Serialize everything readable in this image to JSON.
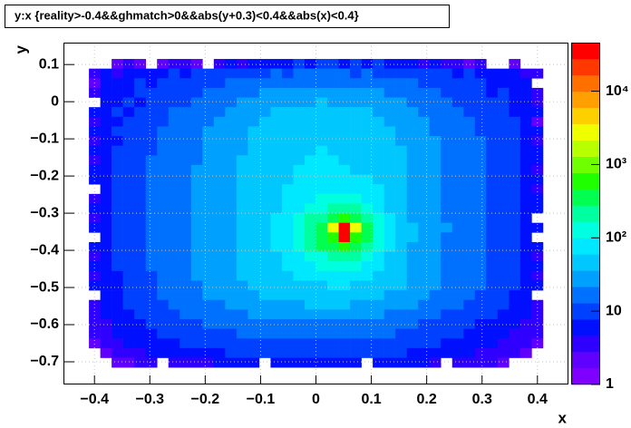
{
  "chart_data": {
    "type": "heatmap",
    "title": "y:x {reality>-0.4&&ghmatch>0&&abs(y+0.3)<0.4&&abs(x)<0.4}",
    "x_label": "x",
    "y_label": "y",
    "xlim": [
      -0.456,
      0.456
    ],
    "ylim": [
      -0.761,
      0.159
    ],
    "x_range": [
      -0.41,
      0.41
    ],
    "y_range": [
      -0.715,
      0.115
    ],
    "zlim": [
      1,
      46000
    ],
    "log_z": true,
    "grid": true,
    "xticks": [
      {
        "value": -0.4,
        "label": "−0.4"
      },
      {
        "value": -0.3,
        "label": "−0.3"
      },
      {
        "value": -0.2,
        "label": "−0.2"
      },
      {
        "value": -0.1,
        "label": "−0.1"
      },
      0,
      0.1,
      0.2,
      0.3,
      0.4
    ],
    "yticks": [
      0.1,
      0,
      {
        "value": -0.1,
        "label": "−0.1"
      },
      {
        "value": -0.2,
        "label": "−0.2"
      },
      {
        "value": -0.3,
        "label": "−0.3"
      },
      {
        "value": -0.4,
        "label": "−0.4"
      },
      {
        "value": -0.5,
        "label": "−0.5"
      },
      {
        "value": -0.6,
        "label": "−0.6"
      },
      {
        "value": -0.7,
        "label": "−0.7"
      }
    ],
    "zticks": [
      1,
      10,
      {
        "value": 100,
        "label": "10²"
      },
      {
        "value": 1000,
        "label": "10³"
      },
      {
        "value": 10000,
        "label": "10⁴"
      }
    ],
    "palette": [
      "#7f00ff",
      "#6000ff",
      "#3000ff",
      "#0010ff",
      "#0040ff",
      "#0070ff",
      "#00a0ff",
      "#00c8ff",
      "#00e8ff",
      "#00ffe0",
      "#00ffa0",
      "#00ff50",
      "#20ff00",
      "#70ff00",
      "#b8ff00",
      "#f0ff00",
      "#ffd000",
      "#ffa000",
      "#ff7000",
      "#ff3800",
      "#ff0000"
    ],
    "z": [
      [
        0,
        0,
        2,
        3,
        2,
        0,
        2,
        4,
        3,
        2,
        0,
        3,
        5,
        4,
        6,
        5,
        7,
        6,
        8,
        7,
        9,
        8,
        7,
        9,
        6,
        8,
        7,
        5,
        6,
        4,
        5,
        3,
        4,
        2,
        3,
        0,
        0,
        2,
        0,
        0
      ],
      [
        3,
        5,
        4,
        6,
        5,
        7,
        6,
        8,
        7,
        9,
        8,
        10,
        9,
        11,
        12,
        10,
        13,
        12,
        14,
        13,
        15,
        14,
        13,
        12,
        14,
        11,
        12,
        10,
        9,
        11,
        8,
        9,
        7,
        8,
        6,
        7,
        5,
        6,
        4,
        3
      ],
      [
        2,
        6,
        5,
        7,
        8,
        6,
        9,
        8,
        10,
        9,
        11,
        12,
        13,
        15,
        14,
        16,
        18,
        17,
        20,
        19,
        21,
        20,
        19,
        18,
        17,
        16,
        15,
        14,
        13,
        12,
        11,
        10,
        9,
        8,
        9,
        7,
        6,
        5,
        6,
        0
      ],
      [
        4,
        5,
        7,
        6,
        8,
        9,
        8,
        10,
        11,
        12,
        13,
        14,
        16,
        18,
        20,
        22,
        24,
        23,
        26,
        27,
        28,
        27,
        26,
        25,
        23,
        22,
        20,
        18,
        16,
        15,
        13,
        12,
        11,
        9,
        8,
        7,
        8,
        6,
        5,
        3
      ],
      [
        0,
        6,
        7,
        8,
        7,
        9,
        10,
        11,
        12,
        14,
        15,
        17,
        19,
        22,
        25,
        28,
        30,
        32,
        34,
        35,
        36,
        35,
        34,
        32,
        30,
        28,
        25,
        22,
        20,
        18,
        16,
        14,
        12,
        11,
        10,
        9,
        8,
        7,
        6,
        4
      ],
      [
        5,
        6,
        8,
        7,
        9,
        10,
        12,
        13,
        14,
        16,
        18,
        20,
        23,
        26,
        29,
        33,
        36,
        39,
        41,
        43,
        44,
        43,
        42,
        40,
        37,
        34,
        30,
        27,
        24,
        21,
        18,
        16,
        14,
        12,
        11,
        9,
        8,
        7,
        6,
        5
      ],
      [
        4,
        7,
        6,
        8,
        10,
        11,
        12,
        14,
        16,
        18,
        20,
        23,
        26,
        30,
        34,
        38,
        42,
        45,
        48,
        50,
        51,
        50,
        48,
        46,
        43,
        39,
        35,
        31,
        27,
        23,
        20,
        17,
        15,
        13,
        12,
        10,
        9,
        8,
        7,
        2
      ],
      [
        5,
        6,
        8,
        9,
        10,
        12,
        13,
        15,
        17,
        19,
        22,
        25,
        28,
        32,
        36,
        41,
        45,
        49,
        52,
        54,
        55,
        54,
        52,
        50,
        47,
        43,
        38,
        33,
        29,
        25,
        21,
        18,
        16,
        14,
        12,
        11,
        9,
        8,
        6,
        5
      ],
      [
        3,
        7,
        7,
        9,
        10,
        12,
        14,
        16,
        18,
        20,
        23,
        26,
        30,
        34,
        38,
        43,
        47,
        51,
        54,
        57,
        58,
        57,
        55,
        52,
        49,
        45,
        40,
        35,
        30,
        26,
        22,
        19,
        17,
        15,
        13,
        11,
        10,
        8,
        7,
        4
      ],
      [
        6,
        6,
        8,
        9,
        11,
        12,
        14,
        16,
        18,
        21,
        24,
        27,
        31,
        35,
        39,
        44,
        48,
        52,
        56,
        58,
        60,
        58,
        56,
        53,
        50,
        46,
        41,
        36,
        31,
        27,
        23,
        20,
        17,
        15,
        13,
        11,
        10,
        8,
        7,
        6
      ],
      [
        4,
        7,
        8,
        10,
        11,
        13,
        15,
        17,
        19,
        21,
        24,
        28,
        31,
        36,
        40,
        45,
        49,
        53,
        57,
        60,
        62,
        60,
        57,
        54,
        51,
        47,
        42,
        37,
        32,
        27,
        23,
        20,
        17,
        15,
        13,
        12,
        10,
        9,
        7,
        5
      ],
      [
        5,
        6,
        8,
        9,
        11,
        13,
        15,
        17,
        19,
        22,
        25,
        28,
        32,
        36,
        41,
        46,
        50,
        55,
        60,
        66,
        72,
        70,
        64,
        58,
        52,
        47,
        42,
        37,
        32,
        27,
        23,
        20,
        18,
        15,
        13,
        12,
        10,
        8,
        7,
        3
      ],
      [
        5,
        7,
        8,
        10,
        11,
        13,
        15,
        17,
        20,
        22,
        25,
        29,
        33,
        37,
        42,
        47,
        52,
        57,
        62,
        67,
        72,
        76,
        78,
        74,
        66,
        56,
        46,
        38,
        33,
        28,
        24,
        20,
        18,
        15,
        13,
        12,
        10,
        9,
        7,
        5
      ],
      [
        0,
        6,
        8,
        9,
        11,
        13,
        15,
        18,
        20,
        23,
        26,
        29,
        33,
        38,
        43,
        48,
        54,
        60,
        66,
        72,
        80,
        90,
        95,
        88,
        75,
        60,
        48,
        40,
        33,
        28,
        24,
        21,
        18,
        16,
        14,
        12,
        10,
        9,
        7,
        4
      ],
      [
        4,
        7,
        8,
        10,
        12,
        13,
        16,
        18,
        20,
        23,
        26,
        30,
        34,
        38,
        44,
        50,
        56,
        63,
        72,
        85,
        100,
        120,
        130,
        115,
        90,
        68,
        52,
        41,
        34,
        29,
        25,
        21,
        18,
        16,
        14,
        12,
        10,
        9,
        7,
        5
      ],
      [
        5,
        7,
        8,
        10,
        11,
        14,
        16,
        18,
        21,
        23,
        27,
        30,
        34,
        39,
        45,
        51,
        58,
        68,
        85,
        110,
        150,
        190,
        210,
        180,
        130,
        85,
        58,
        42,
        35,
        29,
        25,
        21,
        19,
        16,
        14,
        12,
        10,
        9,
        7,
        5
      ],
      [
        3,
        6,
        8,
        10,
        12,
        13,
        16,
        18,
        21,
        24,
        27,
        30,
        35,
        39,
        45,
        53,
        66,
        85,
        120,
        180,
        260,
        400,
        500,
        380,
        200,
        110,
        62,
        44,
        35,
        30,
        25,
        21,
        18,
        16,
        14,
        12,
        10,
        9,
        7,
        0
      ],
      [
        5,
        7,
        8,
        10,
        11,
        14,
        16,
        18,
        21,
        24,
        27,
        31,
        35,
        40,
        46,
        55,
        70,
        95,
        140,
        240,
        400,
        3000,
        45000,
        3000,
        350,
        130,
        70,
        46,
        36,
        30,
        25,
        22,
        19,
        16,
        14,
        12,
        10,
        9,
        7,
        5
      ],
      [
        0,
        7,
        8,
        10,
        12,
        13,
        16,
        18,
        21,
        24,
        27,
        31,
        35,
        40,
        46,
        54,
        68,
        92,
        135,
        220,
        380,
        600,
        40000,
        600,
        330,
        125,
        68,
        45,
        36,
        30,
        25,
        21,
        19,
        16,
        14,
        12,
        10,
        9,
        7,
        0
      ],
      [
        5,
        6,
        8,
        10,
        11,
        13,
        16,
        18,
        20,
        23,
        27,
        30,
        34,
        39,
        45,
        52,
        64,
        85,
        120,
        180,
        280,
        420,
        500,
        400,
        230,
        110,
        62,
        43,
        35,
        29,
        25,
        21,
        18,
        16,
        14,
        12,
        10,
        9,
        7,
        5
      ],
      [
        4,
        6,
        8,
        9,
        11,
        13,
        15,
        18,
        20,
        23,
        26,
        30,
        34,
        38,
        44,
        50,
        58,
        70,
        90,
        120,
        160,
        200,
        220,
        190,
        140,
        90,
        58,
        42,
        34,
        29,
        24,
        21,
        18,
        16,
        14,
        12,
        10,
        9,
        7,
        4
      ],
      [
        5,
        6,
        8,
        9,
        11,
        13,
        15,
        17,
        20,
        22,
        26,
        29,
        33,
        37,
        42,
        48,
        54,
        62,
        72,
        85,
        100,
        115,
        120,
        110,
        92,
        72,
        54,
        40,
        33,
        28,
        24,
        20,
        18,
        15,
        13,
        12,
        10,
        9,
        7,
        5
      ],
      [
        4,
        6,
        7,
        9,
        10,
        12,
        14,
        17,
        19,
        22,
        25,
        28,
        32,
        36,
        41,
        46,
        51,
        57,
        63,
        68,
        74,
        78,
        80,
        76,
        68,
        58,
        48,
        38,
        32,
        27,
        23,
        20,
        17,
        15,
        13,
        11,
        10,
        8,
        7,
        4
      ],
      [
        5,
        6,
        7,
        9,
        10,
        12,
        14,
        16,
        18,
        21,
        24,
        27,
        30,
        34,
        38,
        42,
        46,
        50,
        54,
        57,
        59,
        60,
        60,
        58,
        54,
        49,
        43,
        36,
        30,
        26,
        22,
        19,
        17,
        14,
        13,
        11,
        9,
        8,
        6,
        5
      ],
      [
        0,
        5,
        7,
        8,
        10,
        11,
        13,
        15,
        17,
        19,
        22,
        24,
        27,
        30,
        33,
        36,
        39,
        42,
        44,
        46,
        47,
        48,
        47,
        45,
        42,
        39,
        35,
        31,
        27,
        23,
        20,
        17,
        15,
        13,
        12,
        10,
        9,
        7,
        6,
        0
      ],
      [
        4,
        5,
        6,
        8,
        9,
        10,
        12,
        13,
        15,
        17,
        19,
        21,
        23,
        26,
        28,
        30,
        32,
        34,
        35,
        36,
        37,
        37,
        36,
        35,
        33,
        30,
        28,
        25,
        22,
        19,
        17,
        15,
        13,
        12,
        10,
        9,
        8,
        7,
        5,
        4
      ],
      [
        3,
        5,
        6,
        7,
        8,
        9,
        11,
        12,
        13,
        15,
        16,
        18,
        20,
        21,
        23,
        24,
        25,
        26,
        27,
        28,
        28,
        28,
        27,
        26,
        25,
        23,
        21,
        19,
        17,
        15,
        14,
        12,
        11,
        10,
        9,
        8,
        7,
        6,
        5,
        3
      ],
      [
        4,
        4,
        5,
        6,
        7,
        8,
        9,
        10,
        11,
        12,
        13,
        14,
        15,
        16,
        17,
        18,
        19,
        19,
        20,
        20,
        21,
        20,
        20,
        19,
        18,
        17,
        16,
        15,
        13,
        12,
        11,
        10,
        9,
        8,
        7,
        7,
        6,
        5,
        4,
        4
      ],
      [
        3,
        4,
        5,
        5,
        6,
        7,
        8,
        9,
        9,
        10,
        11,
        11,
        12,
        13,
        13,
        14,
        14,
        15,
        15,
        15,
        16,
        15,
        15,
        15,
        14,
        14,
        13,
        12,
        11,
        10,
        9,
        9,
        8,
        7,
        6,
        6,
        5,
        4,
        4,
        3
      ],
      [
        2,
        3,
        4,
        5,
        5,
        6,
        6,
        7,
        8,
        8,
        9,
        9,
        10,
        10,
        11,
        11,
        11,
        12,
        12,
        12,
        12,
        12,
        12,
        11,
        11,
        11,
        10,
        10,
        9,
        8,
        8,
        7,
        6,
        6,
        5,
        5,
        4,
        4,
        3,
        2
      ],
      [
        0,
        2,
        3,
        4,
        4,
        5,
        5,
        6,
        6,
        7,
        7,
        7,
        8,
        8,
        8,
        9,
        9,
        9,
        9,
        9,
        10,
        9,
        9,
        9,
        9,
        8,
        8,
        8,
        7,
        7,
        6,
        6,
        5,
        5,
        4,
        4,
        3,
        3,
        2,
        0
      ],
      [
        0,
        0,
        2,
        2,
        3,
        3,
        0,
        3,
        4,
        4,
        4,
        5,
        5,
        5,
        6,
        0,
        6,
        6,
        6,
        6,
        6,
        6,
        6,
        6,
        0,
        6,
        5,
        5,
        5,
        5,
        4,
        0,
        4,
        3,
        3,
        3,
        2,
        0,
        0,
        0
      ]
    ]
  }
}
